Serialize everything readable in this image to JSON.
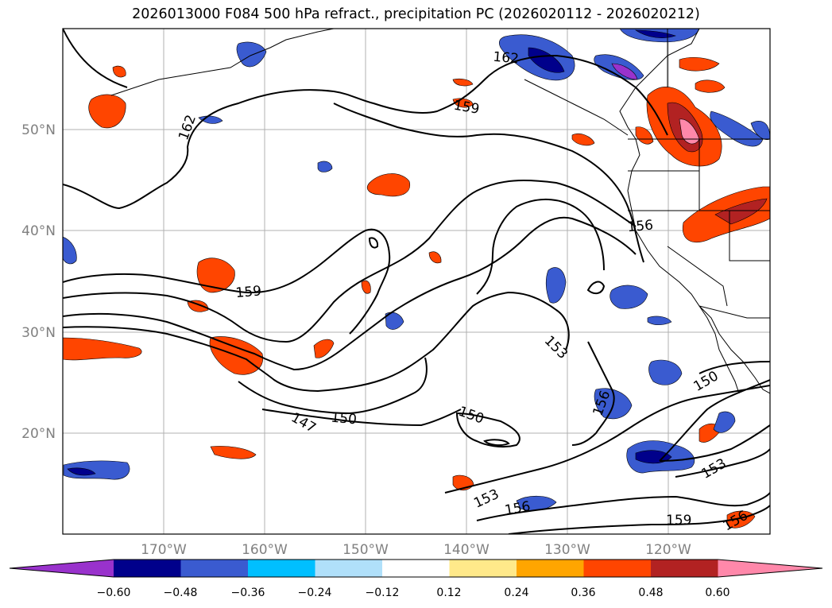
{
  "title": "2026013000 F084 500 hPa refract., precipitation PC (2026020112 - 2026020212)",
  "axes": {
    "lon_labels": [
      "170°W",
      "160°W",
      "150°W",
      "140°W",
      "130°W",
      "120°W"
    ],
    "lat_labels": [
      "50°N",
      "40°N",
      "30°N",
      "20°N"
    ]
  },
  "contour_labels": [
    "162",
    "159",
    "162",
    "159",
    "156",
    "153",
    "150",
    "150",
    "147",
    "150",
    "156",
    "153",
    "156",
    "159",
    "156",
    "153",
    "150"
  ],
  "colorbar": {
    "tick_labels": [
      "−0.60",
      "−0.48",
      "−0.36",
      "−0.24",
      "−0.12",
      "0.12",
      "0.24",
      "0.36",
      "0.48",
      "0.60"
    ],
    "colors": [
      "#9932cc",
      "#00008b",
      "#3a5bd0",
      "#00bfff",
      "#b0e0fa",
      "#ffffff",
      "#ffe98a",
      "#ffa500",
      "#ff4500",
      "#b22222",
      "#ff88aa"
    ]
  }
}
